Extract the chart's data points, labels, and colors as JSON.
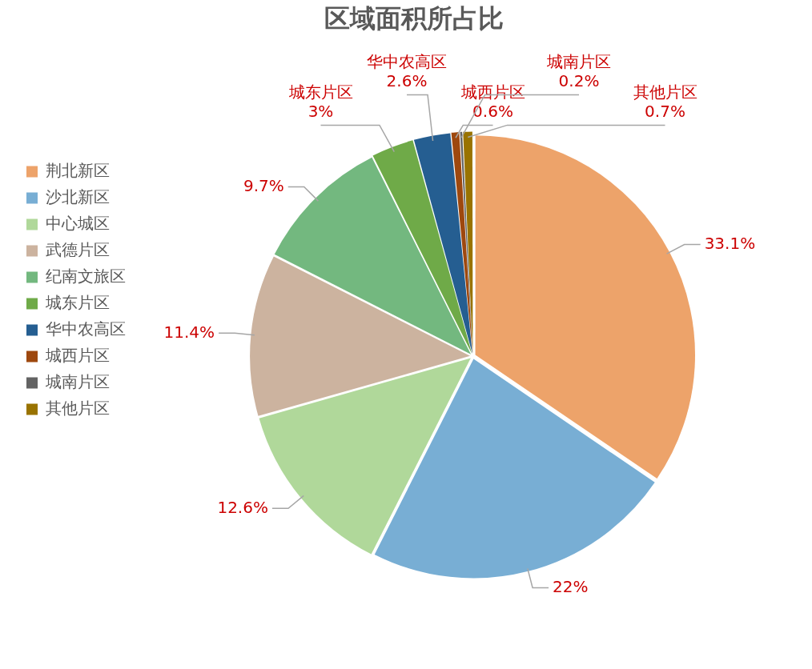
{
  "chart_data": {
    "type": "pie",
    "title": "区域面积所占比",
    "categories": [
      "荆北新区",
      "沙北新区",
      "中心城区",
      "武德片区",
      "纪南文旅区",
      "城东片区",
      "华中农高区",
      "城西片区",
      "城南片区",
      "其他片区"
    ],
    "values": [
      33.1,
      22,
      12.6,
      11.4,
      9.7,
      3,
      2.6,
      0.6,
      0.2,
      0.7
    ],
    "colors": [
      "#eda36a",
      "#78aed4",
      "#b0d89a",
      "#ccb39f",
      "#73b87f",
      "#6faa48",
      "#255e91",
      "#9e480e",
      "#636363",
      "#997300"
    ],
    "value_labels": [
      "33.1%",
      "22%",
      "12.6%",
      "11.4%",
      "9.7%",
      "3%",
      "2.6%",
      "0.6%",
      "0.2%",
      "0.7%"
    ],
    "legend": "left"
  }
}
